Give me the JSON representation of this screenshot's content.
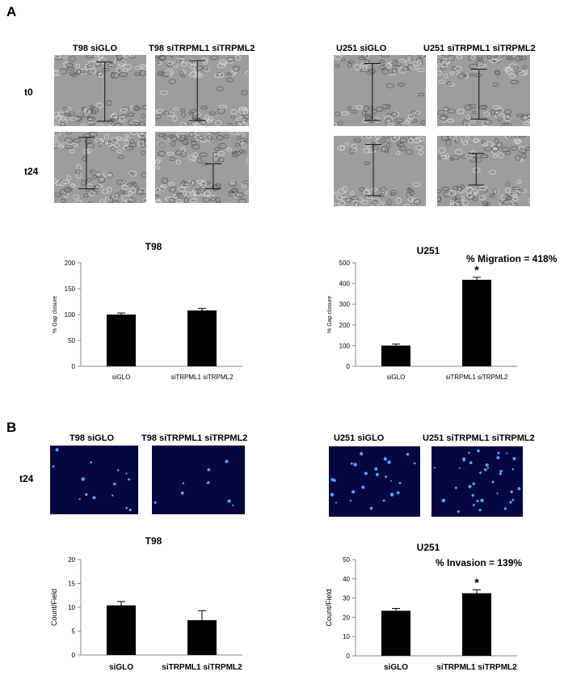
{
  "figure": {
    "panel_a_label": "A",
    "panel_b_label": "B"
  },
  "panel_a": {
    "images": {
      "t98_ctrl_title": "T98 siGLO",
      "t98_kd_title": "T98 siTRPML1 siTRPML2",
      "u251_ctrl_title": "U251 siGLO",
      "u251_kd_title": "U251 siTRPML1 siTRPML2",
      "row_t0": "t0",
      "row_t24": "t24"
    },
    "migration_annotation": "% Migration = 418%"
  },
  "panel_b": {
    "images": {
      "t98_ctrl_title": "T98 siGLO",
      "t98_kd_title": "T98 siTRPML1 siTRPML2",
      "u251_ctrl_title": "U251 siGLO",
      "u251_kd_title": "U251 siTRPML1 siTRPML2",
      "row_t24": "t24"
    },
    "invasion_annotation": "% Invasion = 139%"
  },
  "chart_data": [
    {
      "type": "bar",
      "title": "T98",
      "ylabel": "% Gap closure",
      "xlabel": "",
      "categories": [
        "siGLO",
        "siTRPML1 siTRPML2"
      ],
      "values": [
        100,
        108
      ],
      "errors": [
        3,
        4
      ],
      "ylim": [
        0,
        200
      ],
      "yticks": [
        0,
        50,
        100,
        150,
        200
      ],
      "significance": [
        "",
        ""
      ],
      "bar_color": "#000000",
      "bold_labels": false
    },
    {
      "type": "bar",
      "title": "U251",
      "ylabel": "% Gap closure",
      "xlabel": "",
      "categories": [
        "siGLO",
        "siTRPML1 siTRPML2"
      ],
      "values": [
        100,
        418
      ],
      "errors": [
        8,
        12
      ],
      "ylim": [
        0,
        500
      ],
      "yticks": [
        0,
        100,
        200,
        300,
        400,
        500
      ],
      "significance": [
        "",
        "*"
      ],
      "bar_color": "#000000",
      "bold_labels": false
    },
    {
      "type": "bar",
      "title": "T98",
      "ylabel": "Count/Field",
      "xlabel": "",
      "categories": [
        "siGLO",
        "siTRPML1 siTRPML2"
      ],
      "values": [
        10.4,
        7.3
      ],
      "errors": [
        0.8,
        2.0
      ],
      "ylim": [
        0,
        20
      ],
      "yticks": [
        0,
        5,
        10,
        15,
        20
      ],
      "significance": [
        "",
        ""
      ],
      "bar_color": "#000000",
      "bold_labels": true
    },
    {
      "type": "bar",
      "title": "U251",
      "ylabel": "Count/Field",
      "xlabel": "",
      "categories": [
        "siGLO",
        "siTRPML1 siTRPML2"
      ],
      "values": [
        23.4,
        32.5
      ],
      "errors": [
        1.2,
        1.8
      ],
      "ylim": [
        0,
        50
      ],
      "yticks": [
        0,
        10,
        20,
        30,
        40,
        50
      ],
      "significance": [
        "",
        "*"
      ],
      "bar_color": "#000000",
      "bold_labels": true
    }
  ]
}
